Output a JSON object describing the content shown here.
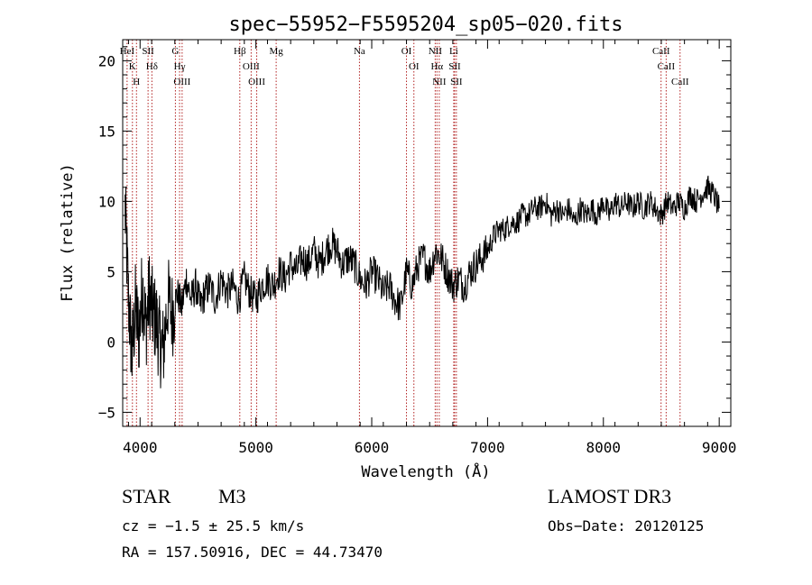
{
  "chart_data": {
    "type": "line",
    "title": "spec−55952−F5595204_sp05−020.fits",
    "xlabel": "Wavelength (Å)",
    "ylabel": "Flux (relative)",
    "xlim": [
      3850,
      9100
    ],
    "ylim": [
      -6,
      21.5
    ],
    "x_ticks": [
      4000,
      5000,
      6000,
      7000,
      8000,
      9000
    ],
    "y_ticks": [
      -5,
      0,
      5,
      10,
      15,
      20
    ],
    "series": [
      {
        "name": "flux",
        "x": [
          3870,
          3900,
          3930,
          3960,
          3990,
          4020,
          4050,
          4080,
          4110,
          4140,
          4170,
          4200,
          4240,
          4280,
          4320,
          4360,
          4400,
          4440,
          4480,
          4520,
          4560,
          4600,
          4650,
          4700,
          4750,
          4800,
          4850,
          4900,
          4950,
          5000,
          5050,
          5100,
          5150,
          5200,
          5250,
          5300,
          5350,
          5400,
          5450,
          5500,
          5550,
          5600,
          5650,
          5700,
          5750,
          5800,
          5850,
          5900,
          5950,
          6000,
          6050,
          6100,
          6150,
          6200,
          6250,
          6300,
          6350,
          6400,
          6450,
          6500,
          6550,
          6600,
          6650,
          6700,
          6750,
          6800,
          6850,
          6900,
          6950,
          7000,
          7050,
          7100,
          7150,
          7200,
          7250,
          7300,
          7350,
          7400,
          7450,
          7500,
          7550,
          7600,
          7650,
          7700,
          7750,
          7800,
          7850,
          7900,
          7950,
          8000,
          8050,
          8100,
          8150,
          8200,
          8250,
          8300,
          8350,
          8400,
          8450,
          8500,
          8550,
          8600,
          8650,
          8700,
          8750,
          8800,
          8850,
          8900,
          8950,
          9000
        ],
        "y": [
          9.5,
          3.0,
          -1.0,
          2.5,
          0.5,
          4.0,
          1.0,
          3.5,
          2.0,
          1.5,
          0.0,
          -0.5,
          3.0,
          2.0,
          3.5,
          2.5,
          4.5,
          3.0,
          4.0,
          2.5,
          3.5,
          4.0,
          3.0,
          4.5,
          3.5,
          4.0,
          3.0,
          4.5,
          3.5,
          3.0,
          4.0,
          4.5,
          4.0,
          5.0,
          4.5,
          5.5,
          5.0,
          6.0,
          5.5,
          6.5,
          5.5,
          6.5,
          7.0,
          6.5,
          5.5,
          6.0,
          5.5,
          4.5,
          4.0,
          5.0,
          4.5,
          3.5,
          4.0,
          3.0,
          2.5,
          5.0,
          4.0,
          5.5,
          6.0,
          5.0,
          6.5,
          6.0,
          5.0,
          4.0,
          4.5,
          4.0,
          5.0,
          5.5,
          6.0,
          6.5,
          7.5,
          8.0,
          8.0,
          8.5,
          8.5,
          9.0,
          9.0,
          9.5,
          9.5,
          10.0,
          9.0,
          9.5,
          9.0,
          9.5,
          8.5,
          9.5,
          9.0,
          9.5,
          9.0,
          10.0,
          9.0,
          10.0,
          9.5,
          10.0,
          9.5,
          10.0,
          9.5,
          10.0,
          9.5,
          9.0,
          10.0,
          9.5,
          10.0,
          9.5,
          10.5,
          10.0,
          10.5,
          11.0,
          10.5,
          9.5
        ]
      }
    ],
    "lines": [
      {
        "name": "HeI",
        "x": 3888
      },
      {
        "name": "K",
        "x": 3934
      },
      {
        "name": "H",
        "x": 3969
      },
      {
        "name": "SII",
        "x": 4069
      },
      {
        "name": "Hδ",
        "x": 4102
      },
      {
        "name": "G",
        "x": 4305
      },
      {
        "name": "Hγ",
        "x": 4341
      },
      {
        "name": "OIII",
        "x": 4363
      },
      {
        "name": "Hβ",
        "x": 4861
      },
      {
        "name": "OIII",
        "x": 4959
      },
      {
        "name": "OIII",
        "x": 5007
      },
      {
        "name": "Mg",
        "x": 5175
      },
      {
        "name": "Na",
        "x": 5894
      },
      {
        "name": "OI",
        "x": 6300
      },
      {
        "name": "OI",
        "x": 6364
      },
      {
        "name": "NII",
        "x": 6548
      },
      {
        "name": "Hα",
        "x": 6563
      },
      {
        "name": "NII",
        "x": 6583
      },
      {
        "name": "Li",
        "x": 6708
      },
      {
        "name": "SII",
        "x": 6716
      },
      {
        "name": "SII",
        "x": 6731
      },
      {
        "name": "CaII",
        "x": 8498
      },
      {
        "name": "CaII",
        "x": 8542
      },
      {
        "name": "CaII",
        "x": 8662
      }
    ],
    "line_color": "#b22222",
    "series_color": "#000000"
  },
  "info": {
    "object_class": "STAR",
    "subclass": "M3",
    "survey": "LAMOST DR3",
    "redshift": "cz = −1.5 ± 25.5 km/s",
    "obs_date": "Obs−Date: 20120125",
    "coords": "RA = 157.50916, DEC =  44.73470"
  }
}
